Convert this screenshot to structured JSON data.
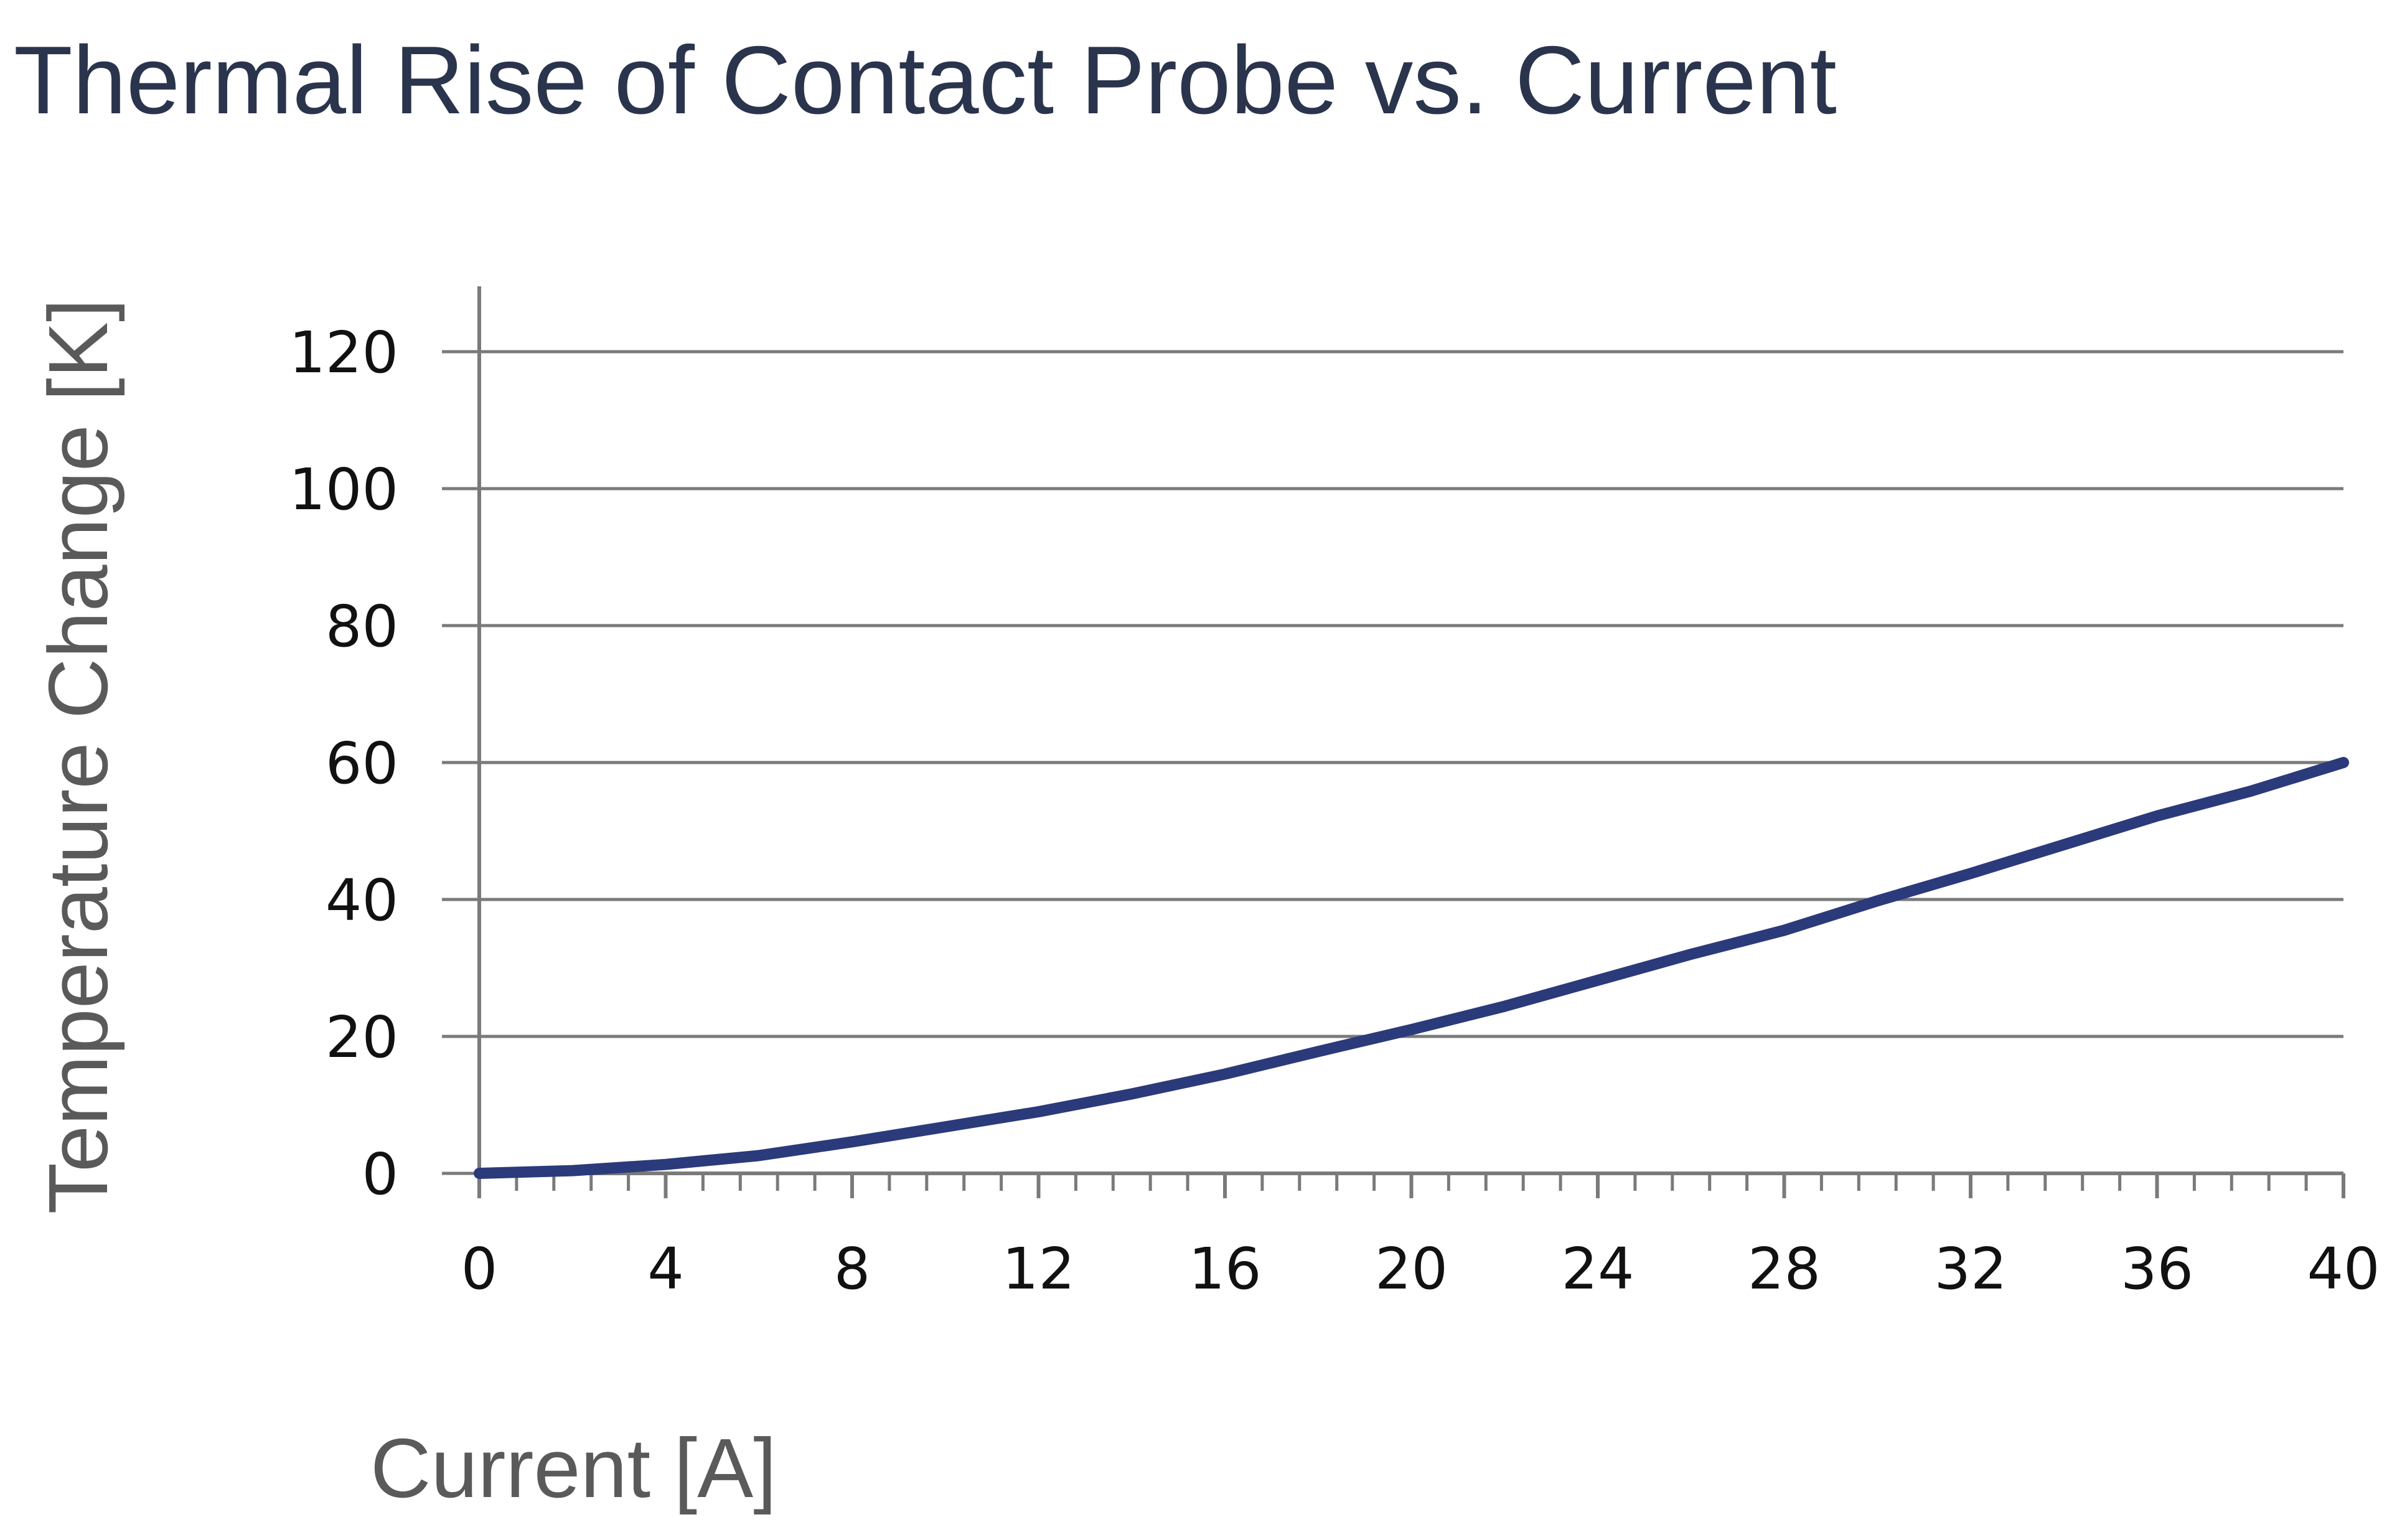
{
  "title": "Thermal Rise of Contact Probe vs. Current",
  "chart_data": {
    "type": "line",
    "title": "Thermal Rise of Contact Probe vs. Current",
    "xlabel": "Current [A]",
    "ylabel": "Temperature Change [K]",
    "xlim": [
      0,
      40
    ],
    "ylim": [
      0,
      120
    ],
    "x_ticks": [
      0,
      4,
      8,
      12,
      16,
      20,
      24,
      28,
      32,
      36,
      40
    ],
    "y_ticks": [
      0,
      20,
      40,
      60,
      80,
      100,
      120
    ],
    "x_minor_tick_step": 0.8,
    "grid": "horizontal",
    "legend": "none",
    "series_color": "#2b3a7a",
    "series": [
      {
        "x": [
          0,
          2,
          4,
          6,
          8,
          10,
          12,
          14,
          16,
          18,
          20,
          22,
          24,
          26,
          28,
          30,
          32,
          34,
          36,
          38,
          40
        ],
        "y": [
          0,
          0.4,
          1.3,
          2.6,
          4.6,
          6.8,
          9.0,
          11.6,
          14.5,
          17.8,
          21.0,
          24.4,
          28.2,
          32.0,
          35.5,
          39.8,
          43.8,
          48.0,
          52.2,
          55.8,
          60.0
        ]
      }
    ]
  }
}
